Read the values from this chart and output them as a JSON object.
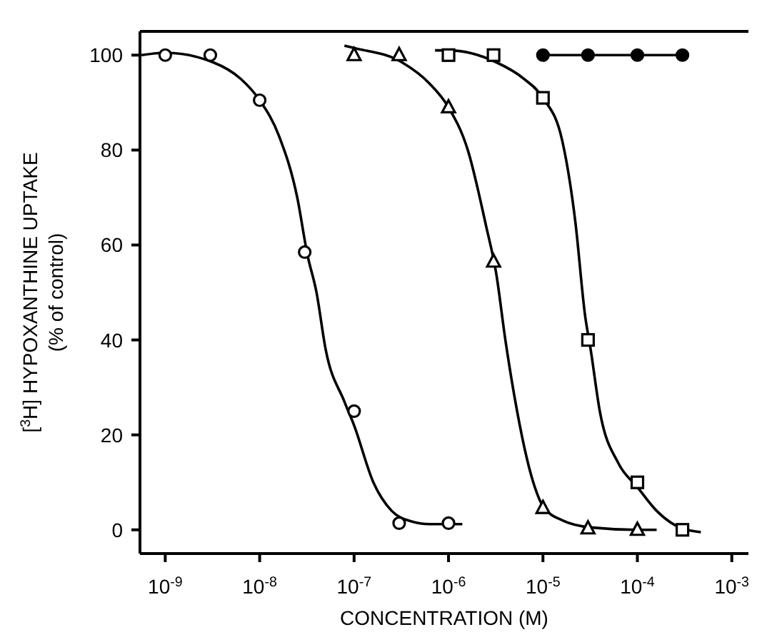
{
  "chart_data": {
    "type": "scatter",
    "xlabel": "CONCENTRATION (M)",
    "ylabel": "[$^{3}$H] HYPOXANTHINE UPTAKE\n(% of control)",
    "log": "x",
    "xlim": [
      5.4e-10,
      0.0015
    ],
    "ylim": [
      -5,
      105
    ],
    "yticks": [
      0,
      20,
      40,
      60,
      80,
      100
    ],
    "xticks": [
      {
        "value": 1e-09,
        "label": "10$^{-9}$"
      },
      {
        "value": 1e-08,
        "label": "10$^{-8}$"
      },
      {
        "value": 1e-07,
        "label": "10$^{-7}$"
      },
      {
        "value": 1e-06,
        "label": "10$^{-6}$"
      },
      {
        "value": 1e-05,
        "label": "10$^{-5}$"
      },
      {
        "value": 0.0001,
        "label": "10$^{-4}$"
      },
      {
        "value": 0.001,
        "label": "10$^{-3}$"
      }
    ],
    "series": [
      {
        "type": "scatter",
        "marker": "circle",
        "color": "#000000",
        "x": [
          1e-09,
          3e-09,
          1e-08,
          3e-08,
          1e-07,
          3e-07,
          1e-06
        ],
        "values": [
          100,
          100,
          90.5,
          58.5,
          25,
          1.4,
          1.4
        ]
      },
      {
        "type": "scatter",
        "marker": "triangle",
        "color": "#000000",
        "x": [
          1e-07,
          3e-07,
          1e-06,
          3e-06,
          1e-05,
          3e-05,
          0.0001
        ],
        "values": [
          100,
          100,
          89,
          56.5,
          4.6,
          0.3,
          0
        ]
      },
      {
        "type": "scatter",
        "marker": "square",
        "color": "#000000",
        "x": [
          1e-06,
          3e-06,
          1e-05,
          3e-05,
          0.0001,
          0.0003
        ],
        "values": [
          100,
          100,
          91,
          40,
          10,
          0
        ]
      },
      {
        "type": "line",
        "marker": "circle",
        "color": "#000000",
        "x": [
          1e-05,
          3e-05,
          0.0001,
          0.0003
        ],
        "values": [
          100,
          100,
          100,
          100
        ]
      },
      {
        "type": "line",
        "marker": "none",
        "color": "#000000",
        "x": [
          5.6e-10,
          1e-09,
          3.2e-09,
          6.3e-09,
          1e-08,
          1.6e-08,
          2.5e-08,
          3.2e-08,
          4e-08,
          5e-08,
          7.9e-08,
          1e-07,
          1.6e-07,
          2.5e-07,
          4e-07,
          6.3e-07,
          1.4e-06
        ],
        "values": [
          100,
          100.5,
          98.5,
          95,
          90.5,
          83,
          70,
          58,
          50,
          38,
          27,
          22,
          10,
          4,
          1.8,
          1.2,
          1.2
        ]
      },
      {
        "type": "line",
        "marker": "none",
        "color": "#000000",
        "x": [
          7.9e-08,
          1e-07,
          3.2e-07,
          6.3e-07,
          1e-06,
          1.6e-06,
          2.5e-06,
          3.2e-06,
          4e-06,
          5e-06,
          7.9e-06,
          1e-05,
          1.6e-05,
          3.2e-05,
          0.0001,
          0.00016
        ],
        "values": [
          102,
          101.5,
          98.5,
          94,
          89,
          80,
          64,
          54,
          40,
          28,
          10,
          5,
          2,
          0.5,
          0,
          0
        ]
      },
      {
        "type": "line",
        "marker": "none",
        "color": "#000000",
        "x": [
          7.2e-07,
          1e-06,
          3.2e-06,
          6.3e-06,
          1e-05,
          1.6e-05,
          2.2e-05,
          2.8e-05,
          3.2e-05,
          4e-05,
          6.3e-05,
          0.0001,
          0.00016,
          0.00025,
          0.00047
        ],
        "values": [
          101,
          101,
          98.5,
          95,
          91,
          82,
          65,
          45,
          38,
          25,
          14,
          9,
          4,
          1,
          -0.5
        ]
      }
    ]
  }
}
